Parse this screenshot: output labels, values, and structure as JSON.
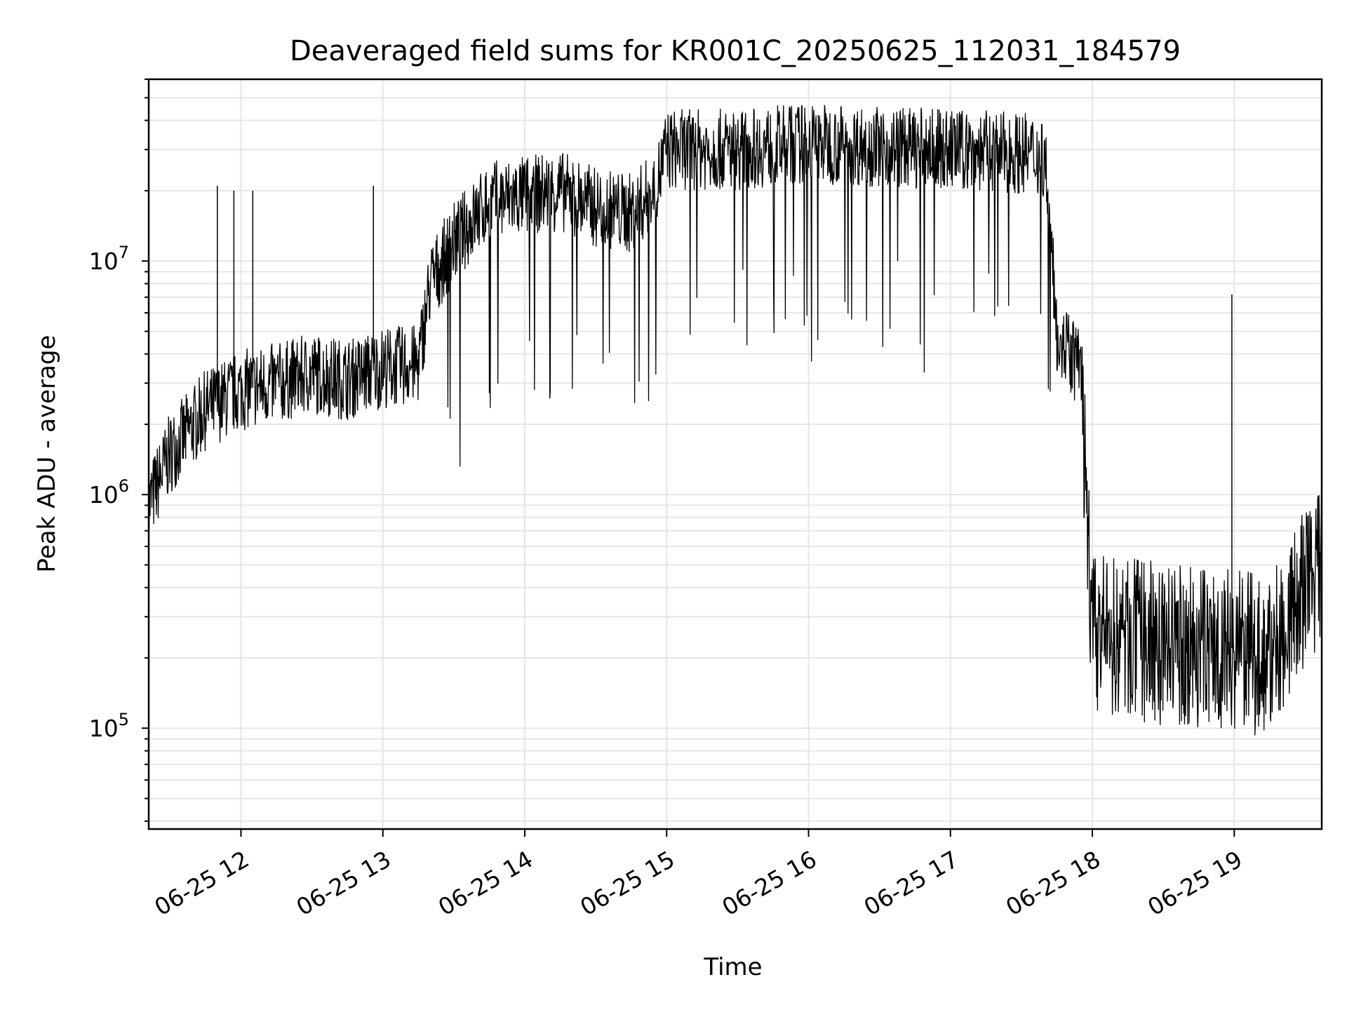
{
  "chart_data": {
    "type": "line",
    "title": "Deaveraged field sums for KR001C_20250625_112031_184579",
    "xlabel": "Time",
    "ylabel": "Peak ADU - average",
    "yscale": "log",
    "ylim": [
      37000,
      60000000
    ],
    "xlim": [
      "06-25 11:21",
      "06-25 19:37"
    ],
    "grid": true,
    "line_color": "#000000",
    "x_ticks": [
      "06-25 12",
      "06-25 13",
      "06-25 14",
      "06-25 15",
      "06-25 16",
      "06-25 17",
      "06-25 18",
      "06-25 19"
    ],
    "y_ticks": [
      {
        "base": "10",
        "exp": "5",
        "value": 100000
      },
      {
        "base": "10",
        "exp": "6",
        "value": 1000000
      },
      {
        "base": "10",
        "exp": "7",
        "value": 10000000
      }
    ],
    "series": [
      {
        "x": [
          "06-25 11:21",
          "06-25 11:30",
          "06-25 11:45",
          "06-25 12:00",
          "06-25 12:15",
          "06-25 12:30",
          "06-25 12:45",
          "06-25 13:00",
          "06-25 13:15",
          "06-25 13:20",
          "06-25 13:30",
          "06-25 13:45",
          "06-25 14:00",
          "06-25 14:15",
          "06-25 14:30",
          "06-25 14:45",
          "06-25 14:55",
          "06-25 15:00",
          "06-25 15:30",
          "06-25 16:00",
          "06-25 16:30",
          "06-25 17:00",
          "06-25 17:30",
          "06-25 17:40",
          "06-25 17:45",
          "06-25 17:50",
          "06-25 17:55",
          "06-25 18:00",
          "06-25 18:30",
          "06-25 19:00",
          "06-25 19:15",
          "06-25 19:30",
          "06-25 19:37"
        ],
        "y": [
          900000,
          1500000,
          2300000,
          2800000,
          3000000,
          3300000,
          3100000,
          3500000,
          3600000,
          8000000,
          12000000,
          18000000,
          19000000,
          20000000,
          17000000,
          16000000,
          20000000,
          30000000,
          30000000,
          32000000,
          31000000,
          30000000,
          29000000,
          28000000,
          5000000,
          4000000,
          3500000,
          250000,
          230000,
          220000,
          200000,
          400000,
          500000
        ]
      }
    ],
    "spikes": [
      {
        "x": "06-25 11:50",
        "y": 21000000
      },
      {
        "x": "06-25 11:57",
        "y": 20000000
      },
      {
        "x": "06-25 12:05",
        "y": 20000000
      },
      {
        "x": "06-25 12:56",
        "y": 21000000
      },
      {
        "x": "06-25 18:59",
        "y": 7200000
      }
    ]
  }
}
